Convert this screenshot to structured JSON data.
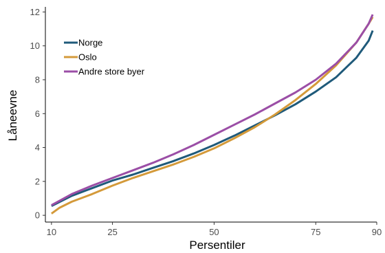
{
  "chart_data": {
    "type": "line",
    "xlabel": "Persentiler",
    "ylabel": "Låneevne",
    "xlim": [
      8.5,
      90
    ],
    "ylim": [
      -0.4,
      12.3
    ],
    "xticks": [
      10,
      25,
      50,
      75,
      90
    ],
    "yticks": [
      0,
      2,
      4,
      6,
      8,
      10,
      12
    ],
    "grid": false,
    "legend_position": "top-left",
    "series": [
      {
        "name": "Norge",
        "color": "#1f5a7a",
        "x": [
          10,
          15,
          20,
          25,
          30,
          35,
          40,
          45,
          50,
          55,
          60,
          65,
          70,
          75,
          80,
          85,
          88,
          89
        ],
        "y": [
          0.55,
          1.15,
          1.6,
          2.05,
          2.4,
          2.8,
          3.2,
          3.65,
          4.15,
          4.7,
          5.3,
          5.9,
          6.55,
          7.3,
          8.15,
          9.3,
          10.3,
          10.9
        ]
      },
      {
        "name": "Oslo",
        "color": "#d49a3a",
        "x": [
          10,
          12,
          15,
          20,
          25,
          30,
          35,
          40,
          45,
          50,
          55,
          60,
          65,
          70,
          75,
          80,
          85,
          88,
          89
        ],
        "y": [
          0.1,
          0.45,
          0.8,
          1.25,
          1.75,
          2.2,
          2.6,
          3.0,
          3.45,
          3.95,
          4.55,
          5.2,
          5.95,
          6.8,
          7.75,
          8.85,
          10.2,
          11.3,
          11.7
        ]
      },
      {
        "name": "Andre store byer",
        "color": "#9b4ea6",
        "x": [
          10,
          15,
          20,
          25,
          30,
          35,
          40,
          45,
          50,
          55,
          60,
          65,
          70,
          75,
          80,
          85,
          88,
          89
        ],
        "y": [
          0.6,
          1.25,
          1.75,
          2.2,
          2.65,
          3.1,
          3.6,
          4.15,
          4.75,
          5.35,
          5.95,
          6.6,
          7.25,
          8.0,
          8.95,
          10.2,
          11.3,
          11.85
        ]
      }
    ]
  }
}
